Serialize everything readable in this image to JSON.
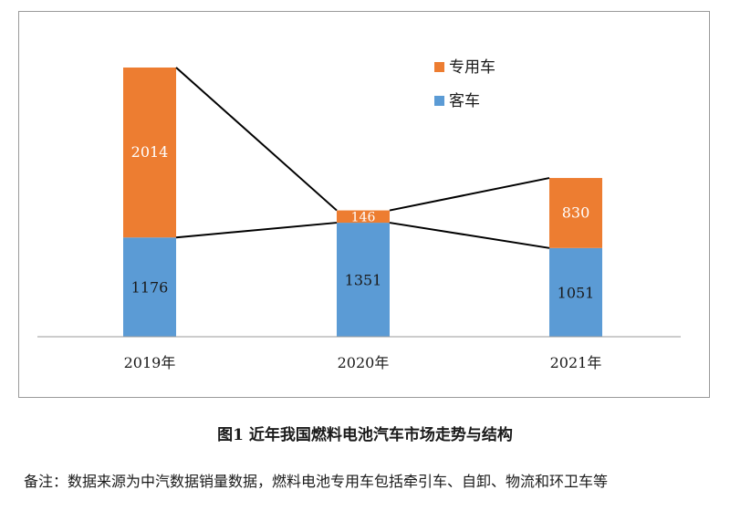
{
  "chart_data": {
    "type": "bar",
    "stacked": true,
    "categories": [
      "2019年",
      "2020年",
      "2021年"
    ],
    "series": [
      {
        "name": "客车",
        "values": [
          1176,
          1351,
          1051
        ],
        "color": "#5b9bd5"
      },
      {
        "name": "专用车",
        "values": [
          2014,
          146,
          830
        ],
        "color": "#ed7d31"
      }
    ],
    "legend_position": "top-right",
    "grid": false
  },
  "caption": "图1 近年我国燃料电池汽车市场走势与结构",
  "note": "备注：数据来源为中汽数据销量数据，燃料电池专用车包括牵引车、自卸、物流和环卫车等"
}
